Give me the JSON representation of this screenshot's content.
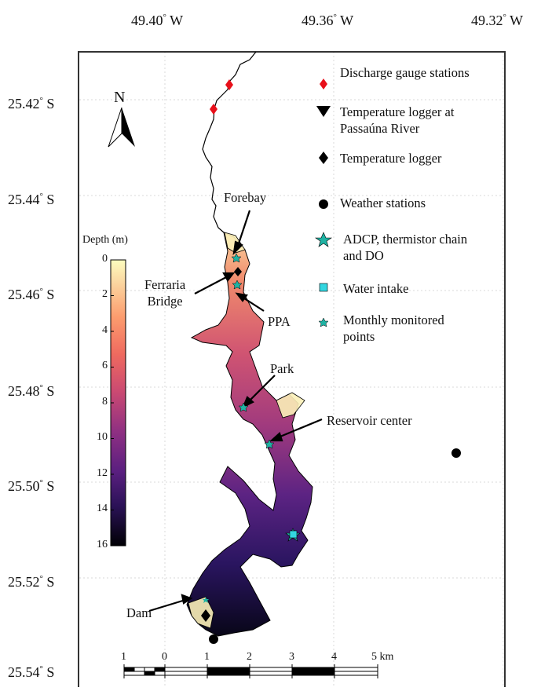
{
  "axes": {
    "lon_ticks": [
      {
        "value": "49.40",
        "suffix": "W"
      },
      {
        "value": "49.36",
        "suffix": "W"
      },
      {
        "value": "49.32",
        "suffix": "W"
      }
    ],
    "lat_ticks": [
      {
        "value": "25.42",
        "suffix": "S"
      },
      {
        "value": "25.44",
        "suffix": "S"
      },
      {
        "value": "25.46",
        "suffix": "S"
      },
      {
        "value": "25.48",
        "suffix": "S"
      },
      {
        "value": "25.50",
        "suffix": "S"
      },
      {
        "value": "25.52",
        "suffix": "S"
      },
      {
        "value": "25.54",
        "suffix": "S"
      }
    ],
    "degree_symbol": "°"
  },
  "legend": {
    "discharge": "Discharge gauge stations",
    "temp_river_line1": "Temperature logger at",
    "temp_river_line2": "Passaúna River",
    "temp_logger": "Temperature logger",
    "weather": "Weather stations",
    "adcp_line1": "ADCP, thermistor chain",
    "adcp_line2": "and DO",
    "intake": "Water intake",
    "monthly_line1": "Monthly monitored",
    "monthly_line2": "points"
  },
  "annotations": {
    "forebay": "Forebay",
    "ferraria_line1": "Ferraria",
    "ferraria_line2": "Bridge",
    "ppa": "PPA",
    "park": "Park",
    "reservoir_center": "Reservoir center",
    "dam": "Dam"
  },
  "colorbar": {
    "title": "Depth (m)",
    "ticks": [
      "0",
      "2",
      "4",
      "6",
      "8",
      "10",
      "12",
      "14",
      "16"
    ],
    "min": 0,
    "max": 16
  },
  "north": {
    "label": "N"
  },
  "scalebar": {
    "labels": [
      "1",
      "0",
      "1",
      "2",
      "3",
      "4",
      "5 km"
    ]
  },
  "colors": {
    "discharge_marker": "#e8101a",
    "adcp_marker": "#1fb2a3",
    "intake_marker": "#33d6e0",
    "monthly_marker": "#1fb2a3",
    "shallow": "#fbf5c0",
    "deep": "#000004"
  }
}
